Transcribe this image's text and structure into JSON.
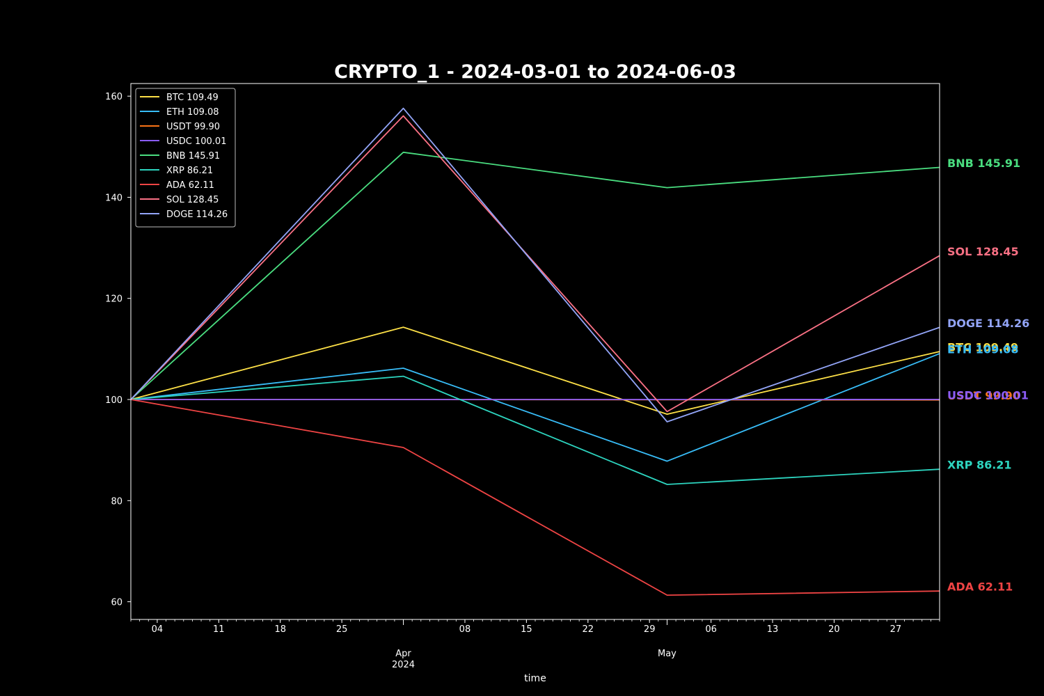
{
  "chart_data": {
    "type": "line",
    "title": "CRYPTO_1 - 2024-03-01 to 2024-06-03",
    "xlabel": "time",
    "ylabel": "",
    "x": [
      "2024-03-01",
      "2024-04-01",
      "2024-05-01",
      "2024-06-01"
    ],
    "x_range": [
      "2024-03-01",
      "2024-06-01"
    ],
    "ylim": [
      56.5,
      162.5
    ],
    "y_ticks": [
      60,
      80,
      100,
      120,
      140,
      160
    ],
    "x_minor_ticks": [
      "04",
      "11",
      "18",
      "25",
      "08",
      "15",
      "22",
      "29",
      "06",
      "13",
      "20",
      "27"
    ],
    "x_minor_tick_dates": [
      "2024-03-04",
      "2024-03-11",
      "2024-03-18",
      "2024-03-25",
      "2024-04-08",
      "2024-04-15",
      "2024-04-22",
      "2024-04-29",
      "2024-05-06",
      "2024-05-13",
      "2024-05-20",
      "2024-05-27"
    ],
    "x_major_ticks": [
      {
        "date": "2024-04-01",
        "month": "Apr",
        "year": "2024"
      },
      {
        "date": "2024-05-01",
        "month": "May",
        "year": ""
      }
    ],
    "legend_position": "top-left",
    "grid": false,
    "background": "#000000",
    "series": [
      {
        "name": "BTC",
        "label": "BTC 109.49",
        "color": "#fde047",
        "values": [
          100,
          114.3,
          97.1,
          109.49
        ]
      },
      {
        "name": "ETH",
        "label": "ETH 109.08",
        "color": "#38bdf8",
        "values": [
          100,
          106.2,
          87.8,
          109.08
        ]
      },
      {
        "name": "USDT",
        "label": "USDT 99.90",
        "color": "#f97316",
        "values": [
          100,
          100.0,
          99.95,
          99.9
        ]
      },
      {
        "name": "USDC",
        "label": "USDC 100.01",
        "color": "#8b5cf6",
        "values": [
          100,
          100.0,
          100.0,
          100.01
        ]
      },
      {
        "name": "BNB",
        "label": "BNB 145.91",
        "color": "#4ade80",
        "values": [
          100,
          148.9,
          141.9,
          145.91
        ]
      },
      {
        "name": "XRP",
        "label": "XRP 86.21",
        "color": "#2dd4bf",
        "values": [
          100,
          104.6,
          83.2,
          86.21
        ]
      },
      {
        "name": "ADA",
        "label": "ADA 62.11",
        "color": "#ef4444",
        "values": [
          100,
          90.5,
          61.3,
          62.11
        ]
      },
      {
        "name": "SOL",
        "label": "SOL 128.45",
        "color": "#fb7185",
        "values": [
          100,
          156.1,
          97.6,
          128.45
        ]
      },
      {
        "name": "DOGE",
        "label": "DOGE 114.26",
        "color": "#93a5f8",
        "values": [
          100,
          157.6,
          95.6,
          114.26
        ]
      }
    ]
  }
}
